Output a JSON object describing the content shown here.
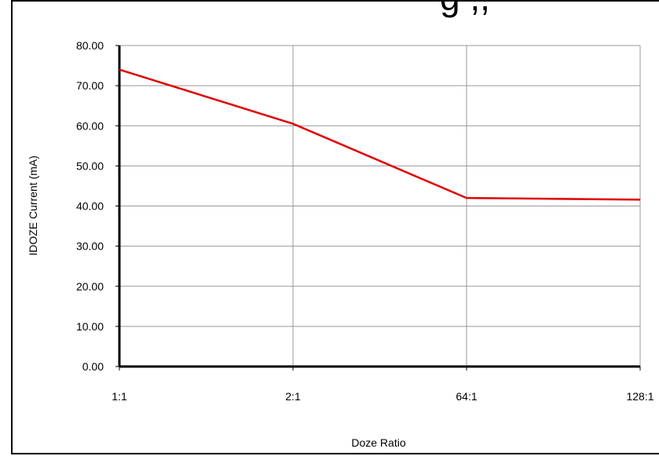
{
  "header": {
    "clipped_title": "g ,,"
  },
  "chart_data": {
    "type": "line",
    "categories": [
      "1:1",
      "2:1",
      "64:1",
      "128:1"
    ],
    "series": [
      {
        "values": [
          74.0,
          60.5,
          42.0,
          41.6
        ],
        "color": "#e00000"
      }
    ],
    "xlabel": "Doze Ratio",
    "ylabel": "IDOZE Current (mA)",
    "ylim": [
      0,
      80
    ],
    "yticks": [
      "0.00",
      "10.00",
      "20.00",
      "30.00",
      "40.00",
      "50.00",
      "60.00",
      "70.00",
      "80.00"
    ],
    "grid": true,
    "grid_color": "#999999",
    "axis_color": "#000000"
  }
}
